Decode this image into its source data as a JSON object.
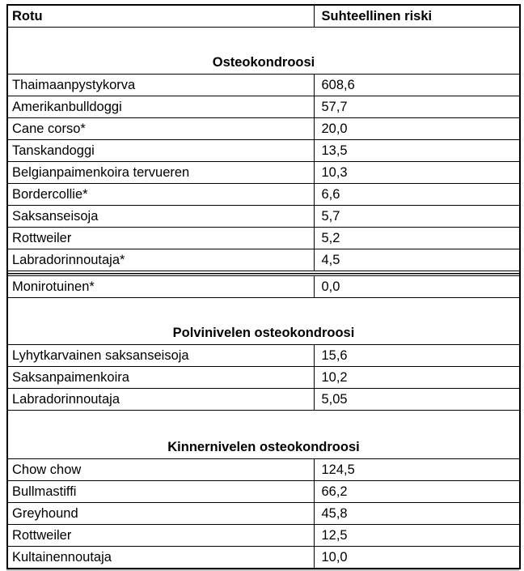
{
  "page": {
    "background_color": "#ffffff",
    "border_color": "#000000",
    "text_color": "#000000"
  },
  "table": {
    "header": {
      "breed": "Rotu",
      "risk": "Suhteellinen riski"
    },
    "sections": [
      {
        "title": "Osteokondroosi"
      },
      {
        "title": "Polvinivelen osteokondroosi"
      },
      {
        "title": "Kinnernivelen osteokondroosi"
      }
    ],
    "s1_rows": [
      {
        "breed": "Thaimaanpystykorva",
        "risk": "608,6"
      },
      {
        "breed": "Amerikanbulldoggi",
        "risk": "57,7"
      },
      {
        "breed": "Cane corso*",
        "risk": "20,0"
      },
      {
        "breed": "Tanskandoggi",
        "risk": "13,5"
      },
      {
        "breed": "Belgianpaimenkoira tervueren",
        "risk": "10,3"
      },
      {
        "breed": "Bordercollie*",
        "risk": "6,6"
      },
      {
        "breed": "Saksanseisoja",
        "risk": "5,7"
      },
      {
        "breed": "Rottweiler",
        "risk": "5,2"
      },
      {
        "breed": "Labradorinnoutaja*",
        "risk": "4,5"
      },
      {
        "breed": "Monirotuinen*",
        "risk": "0,0"
      }
    ],
    "s2_rows": [
      {
        "breed": "Lyhytkarvainen saksanseisoja",
        "risk": "15,6"
      },
      {
        "breed": "Saksanpaimenkoira",
        "risk": "10,2"
      },
      {
        "breed": "Labradorinnoutaja",
        "risk": "5,05"
      }
    ],
    "s3_rows": [
      {
        "breed": "Chow chow",
        "risk": "124,5"
      },
      {
        "breed": "Bullmastiffi",
        "risk": "66,2"
      },
      {
        "breed": "Greyhound",
        "risk": "45,8"
      },
      {
        "breed": "Rottweiler",
        "risk": "12,5"
      },
      {
        "breed": "Kultainennoutaja",
        "risk": "10,0"
      }
    ]
  }
}
